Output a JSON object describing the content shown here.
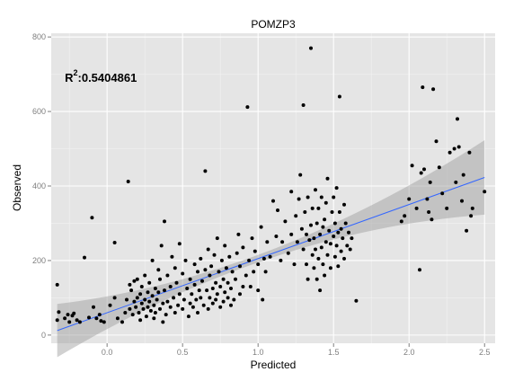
{
  "chart_data": {
    "type": "scatter",
    "title": "POMZP3",
    "xlabel": "Predicted",
    "ylabel": "Observed",
    "xlim": [
      -0.37,
      2.57
    ],
    "ylim": [
      -22,
      810
    ],
    "x_ticks": [
      0.0,
      0.5,
      1.0,
      1.5,
      2.0,
      2.5
    ],
    "x_tick_labels": [
      "0.0",
      "0.5",
      "1.0",
      "1.5",
      "2.0",
      "2.5"
    ],
    "y_ticks": [
      0,
      200,
      400,
      600,
      800
    ],
    "y_tick_labels": [
      "0",
      "200",
      "400",
      "600",
      "800"
    ],
    "grid": true,
    "annotation": {
      "base": "R",
      "sup": "2",
      "text": ":0.5404861",
      "x": -0.28,
      "y": 680
    },
    "fit_line": {
      "x0": -0.33,
      "y0": 12,
      "x1": 2.5,
      "y1": 423,
      "color": "#3366ff",
      "band_color": "#999999"
    },
    "point_color": "#000000",
    "points": [
      [
        -0.33,
        135
      ],
      [
        -0.33,
        40
      ],
      [
        -0.32,
        62
      ],
      [
        -0.28,
        45
      ],
      [
        -0.26,
        55
      ],
      [
        -0.25,
        35
      ],
      [
        -0.23,
        52
      ],
      [
        -0.22,
        58
      ],
      [
        -0.2,
        40
      ],
      [
        -0.18,
        35
      ],
      [
        -0.15,
        208
      ],
      [
        -0.12,
        47
      ],
      [
        -0.1,
        315
      ],
      [
        -0.09,
        75
      ],
      [
        -0.07,
        45
      ],
      [
        -0.05,
        55
      ],
      [
        -0.04,
        38
      ],
      [
        -0.02,
        35
      ],
      [
        0.02,
        80
      ],
      [
        0.05,
        100
      ],
      [
        0.05,
        248
      ],
      [
        0.07,
        45
      ],
      [
        0.1,
        35
      ],
      [
        0.12,
        60
      ],
      [
        0.13,
        95
      ],
      [
        0.14,
        412
      ],
      [
        0.15,
        135
      ],
      [
        0.15,
        70
      ],
      [
        0.16,
        120
      ],
      [
        0.17,
        55
      ],
      [
        0.18,
        90
      ],
      [
        0.18,
        145
      ],
      [
        0.19,
        75
      ],
      [
        0.2,
        100
      ],
      [
        0.2,
        150
      ],
      [
        0.21,
        60
      ],
      [
        0.22,
        110
      ],
      [
        0.22,
        40
      ],
      [
        0.23,
        85
      ],
      [
        0.23,
        130
      ],
      [
        0.24,
        70
      ],
      [
        0.25,
        95
      ],
      [
        0.25,
        160
      ],
      [
        0.26,
        50
      ],
      [
        0.27,
        115
      ],
      [
        0.27,
        75
      ],
      [
        0.28,
        90
      ],
      [
        0.28,
        140
      ],
      [
        0.29,
        65
      ],
      [
        0.3,
        200
      ],
      [
        0.3,
        105
      ],
      [
        0.31,
        45
      ],
      [
        0.31,
        80
      ],
      [
        0.32,
        125
      ],
      [
        0.32,
        60
      ],
      [
        0.33,
        95
      ],
      [
        0.34,
        175
      ],
      [
        0.34,
        115
      ],
      [
        0.35,
        70
      ],
      [
        0.35,
        150
      ],
      [
        0.36,
        240
      ],
      [
        0.37,
        85
      ],
      [
        0.37,
        35
      ],
      [
        0.38,
        305
      ],
      [
        0.38,
        120
      ],
      [
        0.39,
        55
      ],
      [
        0.4,
        90
      ],
      [
        0.4,
        160
      ],
      [
        0.42,
        75
      ],
      [
        0.42,
        130
      ],
      [
        0.43,
        210
      ],
      [
        0.44,
        100
      ],
      [
        0.45,
        60
      ],
      [
        0.45,
        180
      ],
      [
        0.46,
        140
      ],
      [
        0.47,
        80
      ],
      [
        0.48,
        245
      ],
      [
        0.48,
        110
      ],
      [
        0.5,
        165
      ],
      [
        0.5,
        70
      ],
      [
        0.51,
        95
      ],
      [
        0.52,
        200
      ],
      [
        0.53,
        125
      ],
      [
        0.54,
        50
      ],
      [
        0.55,
        150
      ],
      [
        0.55,
        85
      ],
      [
        0.56,
        110
      ],
      [
        0.57,
        75
      ],
      [
        0.58,
        135
      ],
      [
        0.58,
        190
      ],
      [
        0.59,
        95
      ],
      [
        0.6,
        170
      ],
      [
        0.6,
        60
      ],
      [
        0.61,
        120
      ],
      [
        0.62,
        205
      ],
      [
        0.62,
        100
      ],
      [
        0.63,
        145
      ],
      [
        0.64,
        80
      ],
      [
        0.65,
        440
      ],
      [
        0.65,
        175
      ],
      [
        0.66,
        120
      ],
      [
        0.67,
        70
      ],
      [
        0.67,
        230
      ],
      [
        0.68,
        100
      ],
      [
        0.68,
        160
      ],
      [
        0.69,
        185
      ],
      [
        0.7,
        125
      ],
      [
        0.7,
        85
      ],
      [
        0.71,
        215
      ],
      [
        0.72,
        95
      ],
      [
        0.72,
        140
      ],
      [
        0.73,
        260
      ],
      [
        0.73,
        110
      ],
      [
        0.74,
        170
      ],
      [
        0.75,
        75
      ],
      [
        0.75,
        130
      ],
      [
        0.76,
        200
      ],
      [
        0.77,
        90
      ],
      [
        0.77,
        150
      ],
      [
        0.78,
        240
      ],
      [
        0.78,
        115
      ],
      [
        0.79,
        180
      ],
      [
        0.8,
        100
      ],
      [
        0.8,
        140
      ],
      [
        0.81,
        210
      ],
      [
        0.82,
        80
      ],
      [
        0.82,
        125
      ],
      [
        0.83,
        170
      ],
      [
        0.84,
        95
      ],
      [
        0.85,
        150
      ],
      [
        0.86,
        220
      ],
      [
        0.87,
        270
      ],
      [
        0.88,
        110
      ],
      [
        0.88,
        185
      ],
      [
        0.9,
        130
      ],
      [
        0.9,
        235
      ],
      [
        0.92,
        160
      ],
      [
        0.93,
        612
      ],
      [
        0.94,
        200
      ],
      [
        0.95,
        130
      ],
      [
        0.96,
        260
      ],
      [
        0.97,
        170
      ],
      [
        0.98,
        225
      ],
      [
        1.0,
        190
      ],
      [
        1.0,
        120
      ],
      [
        1.02,
        290
      ],
      [
        1.03,
        95
      ],
      [
        1.04,
        205
      ],
      [
        1.05,
        170
      ],
      [
        1.06,
        250
      ],
      [
        1.08,
        210
      ],
      [
        1.1,
        360
      ],
      [
        1.12,
        265
      ],
      [
        1.13,
        335
      ],
      [
        1.15,
        200
      ],
      [
        1.16,
        250
      ],
      [
        1.18,
        305
      ],
      [
        1.2,
        220
      ],
      [
        1.22,
        270
      ],
      [
        1.22,
        385
      ],
      [
        1.24,
        190
      ],
      [
        1.25,
        320
      ],
      [
        1.26,
        250
      ],
      [
        1.27,
        365
      ],
      [
        1.28,
        430
      ],
      [
        1.29,
        285
      ],
      [
        1.3,
        617
      ],
      [
        1.3,
        230
      ],
      [
        1.31,
        330
      ],
      [
        1.32,
        190
      ],
      [
        1.32,
        270
      ],
      [
        1.33,
        370
      ],
      [
        1.33,
        150
      ],
      [
        1.34,
        255
      ],
      [
        1.35,
        770
      ],
      [
        1.35,
        295
      ],
      [
        1.36,
        215
      ],
      [
        1.36,
        340
      ],
      [
        1.37,
        180
      ],
      [
        1.37,
        260
      ],
      [
        1.38,
        390
      ],
      [
        1.38,
        230
      ],
      [
        1.39,
        150
      ],
      [
        1.39,
        300
      ],
      [
        1.4,
        205
      ],
      [
        1.4,
        340
      ],
      [
        1.41,
        270
      ],
      [
        1.41,
        120
      ],
      [
        1.42,
        235
      ],
      [
        1.42,
        370
      ],
      [
        1.43,
        190
      ],
      [
        1.43,
        290
      ],
      [
        1.44,
        310
      ],
      [
        1.44,
        160
      ],
      [
        1.45,
        250
      ],
      [
        1.45,
        355
      ],
      [
        1.46,
        215
      ],
      [
        1.46,
        420
      ],
      [
        1.47,
        280
      ],
      [
        1.48,
        180
      ],
      [
        1.48,
        245
      ],
      [
        1.49,
        330
      ],
      [
        1.5,
        265
      ],
      [
        1.5,
        370
      ],
      [
        1.51,
        210
      ],
      [
        1.51,
        300
      ],
      [
        1.52,
        240
      ],
      [
        1.52,
        395
      ],
      [
        1.53,
        185
      ],
      [
        1.53,
        275
      ],
      [
        1.54,
        640
      ],
      [
        1.54,
        330
      ],
      [
        1.55,
        225
      ],
      [
        1.55,
        285
      ],
      [
        1.56,
        260
      ],
      [
        1.57,
        350
      ],
      [
        1.57,
        205
      ],
      [
        1.58,
        300
      ],
      [
        1.59,
        240
      ],
      [
        1.6,
        275
      ],
      [
        1.61,
        230
      ],
      [
        1.62,
        260
      ],
      [
        1.65,
        92
      ],
      [
        1.95,
        305
      ],
      [
        1.97,
        320
      ],
      [
        2.0,
        365
      ],
      [
        2.02,
        455
      ],
      [
        2.05,
        340
      ],
      [
        2.07,
        175
      ],
      [
        2.08,
        435
      ],
      [
        2.09,
        665
      ],
      [
        2.1,
        445
      ],
      [
        2.12,
        365
      ],
      [
        2.13,
        330
      ],
      [
        2.14,
        410
      ],
      [
        2.15,
        310
      ],
      [
        2.16,
        660
      ],
      [
        2.18,
        520
      ],
      [
        2.2,
        450
      ],
      [
        2.22,
        380
      ],
      [
        2.25,
        340
      ],
      [
        2.27,
        490
      ],
      [
        2.3,
        500
      ],
      [
        2.31,
        410
      ],
      [
        2.32,
        580
      ],
      [
        2.33,
        505
      ],
      [
        2.35,
        360
      ],
      [
        2.36,
        430
      ],
      [
        2.38,
        280
      ],
      [
        2.4,
        490
      ],
      [
        2.41,
        320
      ],
      [
        2.42,
        340
      ],
      [
        2.5,
        385
      ]
    ]
  }
}
